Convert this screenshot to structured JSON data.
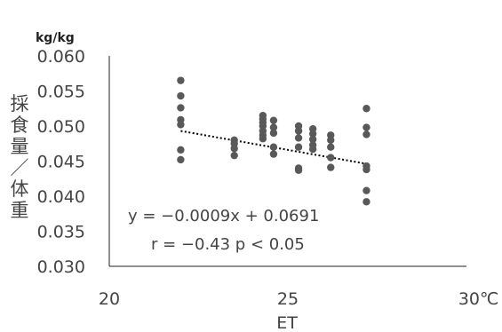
{
  "chart_data": {
    "type": "scatter",
    "xlabel": "ET",
    "x_unit": "℃",
    "ylabel": "採食量／体重",
    "y_unit": "kg/kg",
    "xlim": [
      20,
      30
    ],
    "ylim": [
      0.03,
      0.06
    ],
    "x_ticks": [
      "20",
      "25",
      "30"
    ],
    "y_ticks": [
      "0.060",
      "0.055",
      "0.050",
      "0.045",
      "0.040",
      "0.035",
      "0.030"
    ],
    "points": [
      {
        "x": 22.0,
        "y": 0.0565
      },
      {
        "x": 22.0,
        "y": 0.0543
      },
      {
        "x": 22.0,
        "y": 0.0526
      },
      {
        "x": 22.0,
        "y": 0.0509
      },
      {
        "x": 22.0,
        "y": 0.0502
      },
      {
        "x": 22.0,
        "y": 0.0466
      },
      {
        "x": 22.0,
        "y": 0.0452
      },
      {
        "x": 23.5,
        "y": 0.048
      },
      {
        "x": 23.5,
        "y": 0.0475
      },
      {
        "x": 23.5,
        "y": 0.0468
      },
      {
        "x": 23.5,
        "y": 0.0458
      },
      {
        "x": 24.3,
        "y": 0.0515
      },
      {
        "x": 24.3,
        "y": 0.051
      },
      {
        "x": 24.3,
        "y": 0.0505
      },
      {
        "x": 24.3,
        "y": 0.05
      },
      {
        "x": 24.3,
        "y": 0.0493
      },
      {
        "x": 24.3,
        "y": 0.0487
      },
      {
        "x": 24.3,
        "y": 0.0482
      },
      {
        "x": 24.6,
        "y": 0.0508
      },
      {
        "x": 24.6,
        "y": 0.0498
      },
      {
        "x": 24.6,
        "y": 0.049
      },
      {
        "x": 24.6,
        "y": 0.047
      },
      {
        "x": 24.6,
        "y": 0.046
      },
      {
        "x": 25.3,
        "y": 0.05
      },
      {
        "x": 25.3,
        "y": 0.0493
      },
      {
        "x": 25.3,
        "y": 0.0483
      },
      {
        "x": 25.3,
        "y": 0.047
      },
      {
        "x": 25.3,
        "y": 0.044
      },
      {
        "x": 25.3,
        "y": 0.0437
      },
      {
        "x": 25.7,
        "y": 0.0496
      },
      {
        "x": 25.7,
        "y": 0.0489
      },
      {
        "x": 25.7,
        "y": 0.0481
      },
      {
        "x": 25.7,
        "y": 0.0473
      },
      {
        "x": 25.7,
        "y": 0.0467
      },
      {
        "x": 26.2,
        "y": 0.0487
      },
      {
        "x": 26.2,
        "y": 0.048
      },
      {
        "x": 26.2,
        "y": 0.047
      },
      {
        "x": 26.2,
        "y": 0.0455
      },
      {
        "x": 26.2,
        "y": 0.0441
      },
      {
        "x": 27.2,
        "y": 0.0525
      },
      {
        "x": 27.2,
        "y": 0.0498
      },
      {
        "x": 27.2,
        "y": 0.0488
      },
      {
        "x": 27.2,
        "y": 0.0443
      },
      {
        "x": 27.2,
        "y": 0.0438
      },
      {
        "x": 27.2,
        "y": 0.0408
      },
      {
        "x": 27.2,
        "y": 0.0392
      }
    ],
    "trendline": {
      "slope": -0.0009,
      "intercept": 0.0691,
      "x_range": [
        22.0,
        27.2
      ],
      "style": "dotted"
    },
    "annotations": [
      "y = −0.0009x + 0.0691",
      "r = −0.43  p < 0.05"
    ],
    "marker_color": "#595959",
    "line_color": "#000000",
    "grid": false,
    "legend": "none"
  }
}
